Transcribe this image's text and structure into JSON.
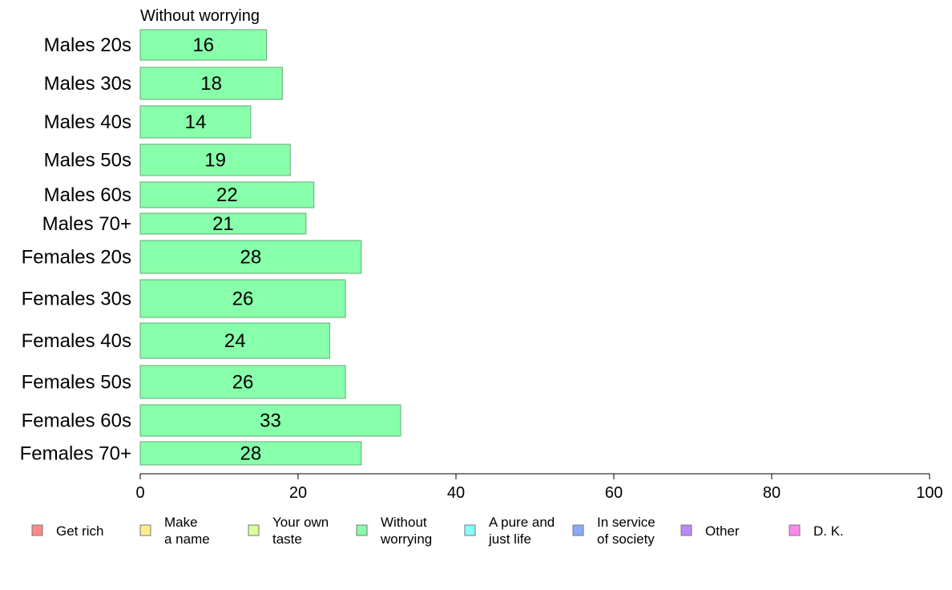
{
  "chart_data": {
    "type": "bar",
    "orientation": "horizontal",
    "title": "Without worrying",
    "categories": [
      "Males 20s",
      "Males 30s",
      "Males 40s",
      "Males 50s",
      "Males 60s",
      "Males 70+",
      "Females 20s",
      "Females 30s",
      "Females 40s",
      "Females 50s",
      "Females 60s",
      "Females 70+"
    ],
    "series": [
      {
        "name": "Without worrying",
        "color": "#88ffaa",
        "values": [
          16,
          18,
          14,
          19,
          22,
          21,
          28,
          26,
          24,
          26,
          33,
          28
        ]
      }
    ],
    "xlim": [
      0,
      100
    ],
    "xticks": [
      0,
      20,
      40,
      60,
      80,
      100
    ],
    "grid": false,
    "legend": {
      "position": "bottom",
      "items": [
        {
          "label": "Get rich",
          "color": "#ff8888"
        },
        {
          "label": "Make\na name",
          "color": "#ffee88"
        },
        {
          "label": "Your own\ntaste",
          "color": "#ddff99"
        },
        {
          "label": "Without\nworrying",
          "color": "#88ffaa"
        },
        {
          "label": "A pure and\njust life",
          "color": "#88ffff"
        },
        {
          "label": "In service\nof society",
          "color": "#88aaff"
        },
        {
          "label": "Other",
          "color": "#bb88ff"
        },
        {
          "label": "D. K.",
          "color": "#ff88ee"
        }
      ]
    }
  }
}
